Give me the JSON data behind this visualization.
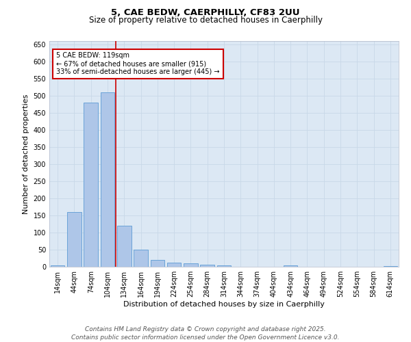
{
  "title_line1": "5, CAE BEDW, CAERPHILLY, CF83 2UU",
  "title_line2": "Size of property relative to detached houses in Caerphilly",
  "xlabel": "Distribution of detached houses by size in Caerphilly",
  "ylabel": "Number of detached properties",
  "categories": [
    "14sqm",
    "44sqm",
    "74sqm",
    "104sqm",
    "134sqm",
    "164sqm",
    "194sqm",
    "224sqm",
    "254sqm",
    "284sqm",
    "314sqm",
    "344sqm",
    "374sqm",
    "404sqm",
    "434sqm",
    "464sqm",
    "494sqm",
    "524sqm",
    "554sqm",
    "584sqm",
    "614sqm"
  ],
  "values": [
    5,
    160,
    480,
    510,
    120,
    50,
    20,
    12,
    10,
    7,
    5,
    0,
    0,
    0,
    5,
    0,
    0,
    0,
    0,
    0,
    3
  ],
  "bar_color": "#aec6e8",
  "bar_edge_color": "#5b9bd5",
  "vline_color": "#cc0000",
  "annotation_text": "5 CAE BEDW: 119sqm\n← 67% of detached houses are smaller (915)\n33% of semi-detached houses are larger (445) →",
  "annotation_box_color": "#ffffff",
  "annotation_box_edge_color": "#cc0000",
  "ylim": [
    0,
    660
  ],
  "yticks": [
    0,
    50,
    100,
    150,
    200,
    250,
    300,
    350,
    400,
    450,
    500,
    550,
    600,
    650
  ],
  "grid_color": "#c8d8e8",
  "background_color": "#dce8f4",
  "footer": "Contains HM Land Registry data © Crown copyright and database right 2025.\nContains public sector information licensed under the Open Government Licence v3.0.",
  "title_fontsize": 9.5,
  "subtitle_fontsize": 8.5,
  "axis_label_fontsize": 8,
  "tick_fontsize": 7,
  "annotation_fontsize": 7,
  "footer_fontsize": 6.5,
  "vline_pos": 3.5
}
